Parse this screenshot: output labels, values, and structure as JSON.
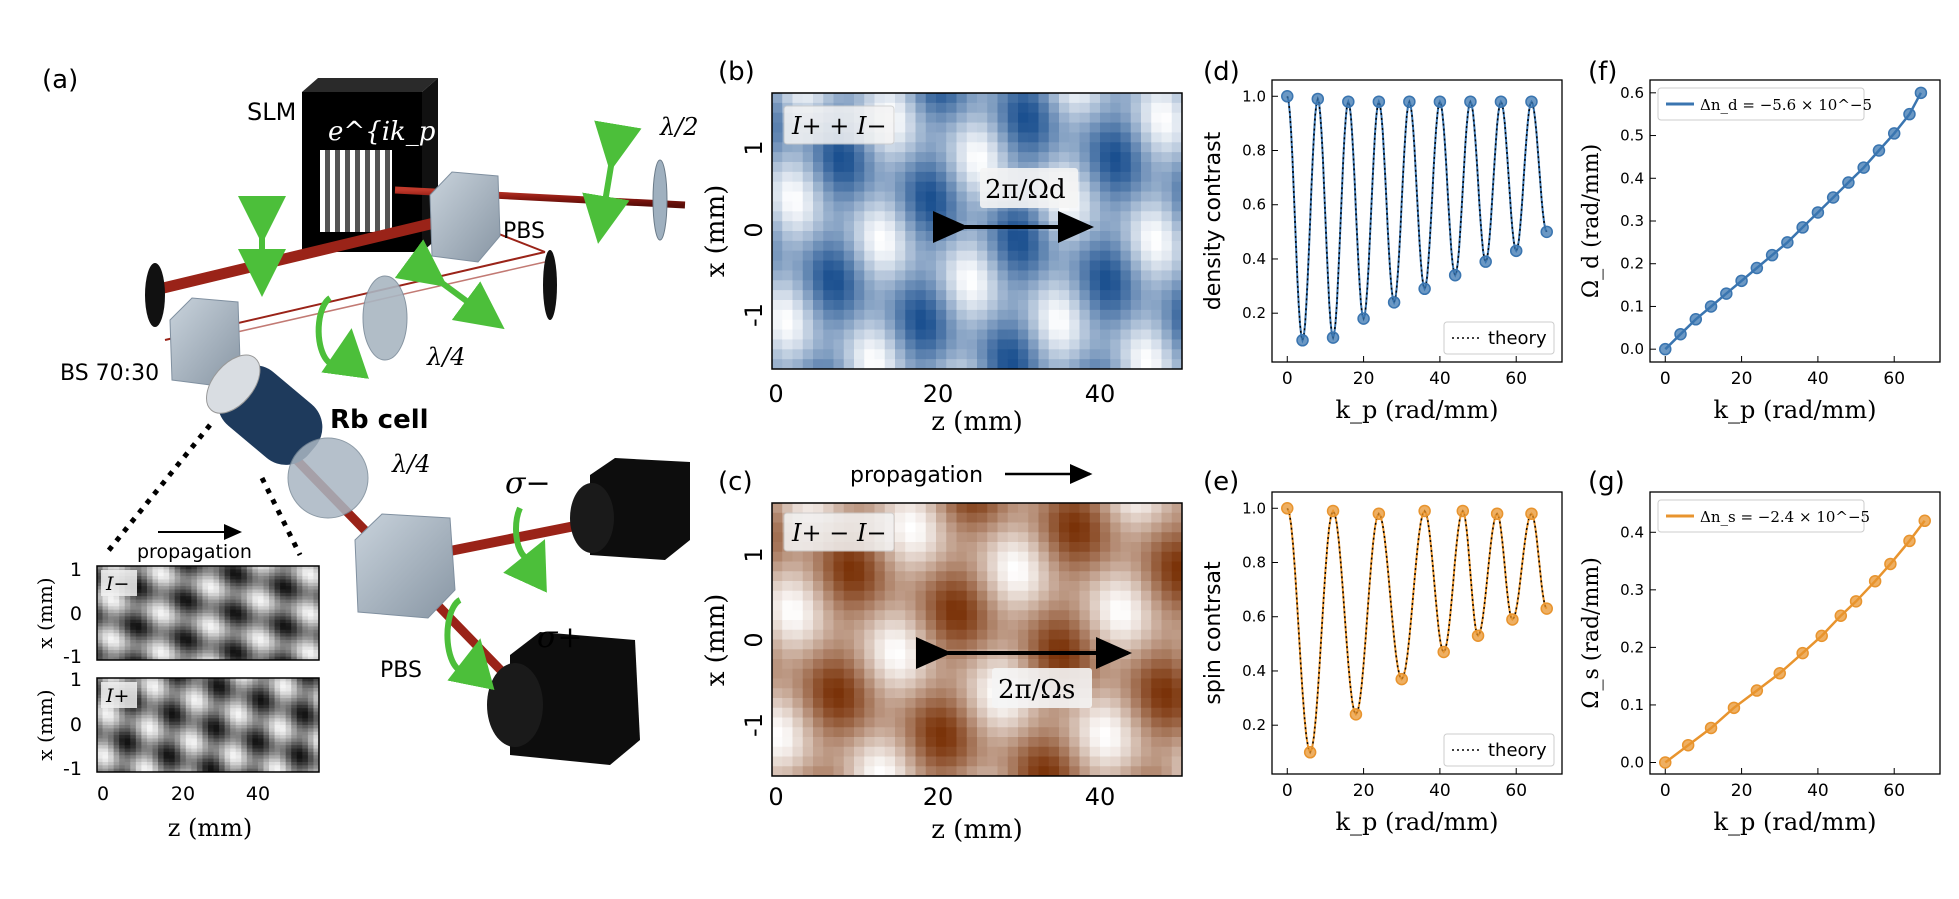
{
  "panels": {
    "a": {
      "label": "(a)",
      "slm": "SLM",
      "phase_mask": "e^{ik_p x}",
      "pbs_top": "PBS",
      "half_wave": "λ/2",
      "quarter_wave_top": "λ/4",
      "beam_splitter": "BS 70:30",
      "rb_cell": "Rb cell",
      "quarter_wave_bottom": "λ/4",
      "pbs_bottom": "PBS",
      "sigma_minus": "σ−",
      "sigma_plus": "σ+",
      "propagation": "propagation",
      "inset_minus": "I−",
      "inset_plus": "I+",
      "inset_ylabel": "x (mm)",
      "inset_xlabel": "z (mm)",
      "inset_xticks": [
        "0",
        "20",
        "40"
      ],
      "inset_yticks_top": [
        "1",
        "0",
        "-1"
      ],
      "inset_yticks_bottom": [
        "1",
        "0",
        "-1"
      ]
    },
    "b": {
      "label": "(b)",
      "legend": "I+ + I−",
      "period": "2π/Ωd",
      "xlabel": "z (mm)",
      "ylabel": "x (mm)",
      "xticks": [
        "0",
        "20",
        "40"
      ],
      "yticks": [
        "1",
        "0",
        "-1"
      ],
      "cmap_dark": "#1a4f8f",
      "cmap_light": "#ffffff"
    },
    "c": {
      "label": "(c)",
      "legend": "I+ − I−",
      "period": "2π/Ωs",
      "propagation": "propagation",
      "xlabel": "z (mm)",
      "ylabel": "x (mm)",
      "xticks": [
        "0",
        "20",
        "40"
      ],
      "yticks": [
        "1",
        "0",
        "-1"
      ],
      "cmap_dark": "#7a3208",
      "cmap_light": "#ffffff"
    },
    "d": {
      "label": "(d)"
    },
    "e": {
      "label": "(e)"
    },
    "f": {
      "label": "(f)"
    },
    "g": {
      "label": "(g)"
    }
  },
  "chart_data": [
    {
      "id": "d",
      "type": "scatter",
      "ylabel": "density contrast",
      "xlabel": "k_p (rad/mm)",
      "xlim": [
        -4,
        72
      ],
      "ylim": [
        0.02,
        1.06
      ],
      "xticks": [
        0,
        20,
        40,
        60
      ],
      "yticks": [
        0.2,
        0.4,
        0.6,
        0.8,
        1.0
      ],
      "legend": "theory",
      "color": "#3a75b0",
      "x": [
        0,
        4,
        8,
        12,
        16,
        20,
        24,
        28,
        32,
        36,
        40,
        44,
        48,
        52,
        56,
        60,
        64,
        68
      ],
      "y": [
        1.0,
        0.1,
        0.99,
        0.11,
        0.98,
        0.18,
        0.98,
        0.24,
        0.98,
        0.29,
        0.98,
        0.34,
        0.98,
        0.39,
        0.98,
        0.43,
        0.98,
        0.5
      ]
    },
    {
      "id": "e",
      "type": "scatter",
      "ylabel": "spin contrsat",
      "xlabel": "k_p (rad/mm)",
      "xlim": [
        -4,
        72
      ],
      "ylim": [
        0.02,
        1.06
      ],
      "xticks": [
        0,
        20,
        40,
        60
      ],
      "yticks": [
        0.2,
        0.4,
        0.6,
        0.8,
        1.0
      ],
      "legend": "theory",
      "color": "#e8942e",
      "x": [
        0,
        6,
        12,
        18,
        24,
        30,
        36,
        41,
        46,
        50,
        55,
        59,
        64,
        68
      ],
      "y": [
        1.0,
        0.1,
        0.99,
        0.24,
        0.98,
        0.37,
        0.99,
        0.47,
        0.99,
        0.53,
        0.98,
        0.59,
        0.98,
        0.63
      ]
    },
    {
      "id": "f",
      "type": "line",
      "ylabel": "Ω_d (rad/mm)",
      "xlabel": "k_p (rad/mm)",
      "xlim": [
        -4,
        72
      ],
      "ylim": [
        -0.03,
        0.63
      ],
      "xticks": [
        0,
        20,
        40,
        60
      ],
      "yticks": [
        0.0,
        0.1,
        0.2,
        0.3,
        0.4,
        0.5,
        0.6
      ],
      "legend": "Δn_d = −5.6 × 10^−5",
      "color": "#3a75b0",
      "x": [
        0,
        4,
        8,
        12,
        16,
        20,
        24,
        28,
        32,
        36,
        40,
        44,
        48,
        52,
        56,
        60,
        64,
        67
      ],
      "y": [
        0.0,
        0.035,
        0.07,
        0.1,
        0.13,
        0.16,
        0.19,
        0.22,
        0.25,
        0.285,
        0.32,
        0.355,
        0.39,
        0.425,
        0.465,
        0.505,
        0.55,
        0.6
      ]
    },
    {
      "id": "g",
      "type": "line",
      "ylabel": "Ω_s (rad/mm)",
      "xlabel": "k_p (rad/mm)",
      "xlim": [
        -4,
        72
      ],
      "ylim": [
        -0.02,
        0.47
      ],
      "xticks": [
        0,
        20,
        40,
        60
      ],
      "yticks": [
        0.0,
        0.1,
        0.2,
        0.3,
        0.4
      ],
      "legend": "Δn_s = −2.4 × 10^−5",
      "color": "#e8942e",
      "x": [
        0,
        6,
        12,
        18,
        24,
        30,
        36,
        41,
        46,
        50,
        55,
        59,
        64,
        68
      ],
      "y": [
        0.0,
        0.03,
        0.06,
        0.095,
        0.125,
        0.155,
        0.19,
        0.22,
        0.255,
        0.28,
        0.315,
        0.345,
        0.385,
        0.42
      ]
    }
  ]
}
